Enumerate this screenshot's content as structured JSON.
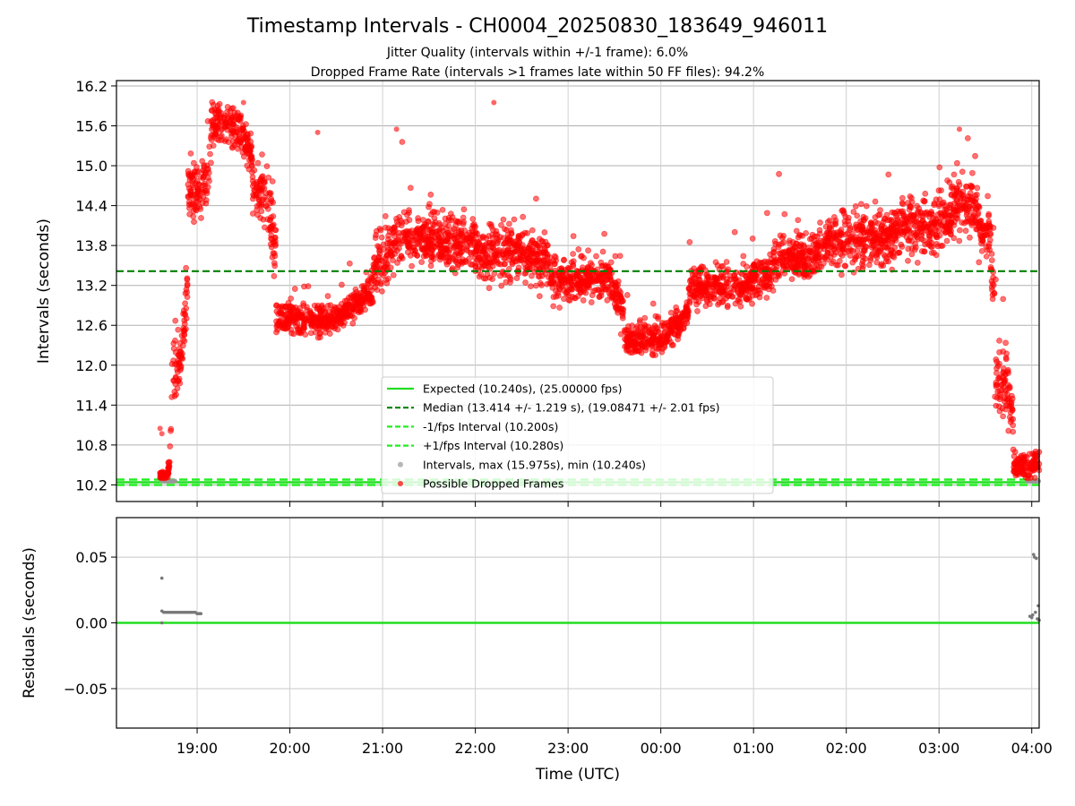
{
  "title": "Timestamp Intervals - CH0004_20250830_183649_946011",
  "subtitle_lines": [
    "Jitter Quality (intervals within +/-1 frame): 6.0%",
    "Dropped Frame Rate (intervals >1 frames late within 50 FF files): 94.2%"
  ],
  "chart_data": [
    {
      "type": "scatter",
      "panel": "top",
      "ylabel": "Intervals (seconds)",
      "xlabel": "",
      "x_unit": "hours after 18:00 UTC",
      "xlim": [
        0.13,
        10.08
      ],
      "ylim": [
        9.95,
        16.28
      ],
      "yticks": [
        10.2,
        10.8,
        11.4,
        12.0,
        12.6,
        13.2,
        13.8,
        14.4,
        15.0,
        15.6,
        16.2
      ],
      "ytick_labels": [
        "10.2",
        "10.8",
        "11.4",
        "12.0",
        "12.6",
        "13.2",
        "13.8",
        "14.4",
        "15.0",
        "15.6",
        "16.2"
      ],
      "grid": true,
      "colors": {
        "expected": "#22dd22",
        "median": "#008000",
        "interval_band": "#22ee22",
        "intervals": "#999999",
        "dropped": "#ff0000"
      },
      "reference_lines": {
        "expected": 10.24,
        "median": 13.414,
        "minus_one_fps": 10.2,
        "plus_one_fps": 10.28
      },
      "legend": {
        "position": "lower-center",
        "entries": [
          "Expected (10.240s), (25.00000 fps)",
          "Median (13.414 +/- 1.219 s), (19.08471 +/- 2.01 fps)",
          "-1/fps Interval (10.200s)",
          "+1/fps Interval (10.280s)",
          "Intervals, max (15.975s), min (10.240s)",
          "Possible Dropped Frames"
        ]
      },
      "trend_segments": [
        {
          "x0": 0.6,
          "x1": 0.72,
          "y": 10.0,
          "spread": 0.15
        },
        {
          "x0": 0.72,
          "x1": 0.9,
          "y": 12.0,
          "spread": 0.45
        },
        {
          "x0": 0.9,
          "x1": 1.15,
          "y": 14.6,
          "spread": 0.45
        },
        {
          "x0": 1.15,
          "x1": 1.6,
          "y": 15.6,
          "spread": 0.3
        },
        {
          "x0": 1.6,
          "x1": 1.85,
          "y": 14.6,
          "spread": 0.45
        },
        {
          "x0": 1.85,
          "x1": 2.9,
          "y": 12.7,
          "spread": 0.22
        },
        {
          "x0": 2.9,
          "x1": 3.1,
          "y": 13.6,
          "spread": 0.45
        },
        {
          "x0": 3.1,
          "x1": 4.0,
          "y": 13.9,
          "spread": 0.4
        },
        {
          "x0": 4.0,
          "x1": 4.8,
          "y": 13.7,
          "spread": 0.4
        },
        {
          "x0": 4.8,
          "x1": 5.15,
          "y": 13.3,
          "spread": 0.35
        },
        {
          "x0": 5.15,
          "x1": 5.6,
          "y": 13.3,
          "spread": 0.3
        },
        {
          "x0": 5.6,
          "x1": 6.3,
          "y": 12.4,
          "spread": 0.22
        },
        {
          "x0": 6.3,
          "x1": 7.2,
          "y": 13.2,
          "spread": 0.3
        },
        {
          "x0": 7.2,
          "x1": 7.8,
          "y": 13.6,
          "spread": 0.35
        },
        {
          "x0": 7.8,
          "x1": 8.6,
          "y": 13.9,
          "spread": 0.4
        },
        {
          "x0": 8.6,
          "x1": 9.15,
          "y": 14.1,
          "spread": 0.45
        },
        {
          "x0": 9.15,
          "x1": 9.45,
          "y": 14.4,
          "spread": 0.45
        },
        {
          "x0": 9.45,
          "x1": 9.6,
          "y": 14.0,
          "spread": 0.4
        },
        {
          "x0": 9.6,
          "x1": 9.8,
          "y": 11.8,
          "spread": 0.5
        },
        {
          "x0": 9.8,
          "x1": 10.08,
          "y": 10.5,
          "spread": 0.18
        }
      ],
      "outlier_points": [
        {
          "x": 1.5,
          "y": 15.95
        },
        {
          "x": 4.2,
          "y": 15.95
        },
        {
          "x": 2.3,
          "y": 15.5
        },
        {
          "x": 3.15,
          "y": 15.55
        },
        {
          "x": 9.22,
          "y": 15.55
        },
        {
          "x": 0.62,
          "y": 10.97
        },
        {
          "x": 0.6,
          "y": 11.05
        }
      ],
      "normal_points_x_ranges": [
        [
          0.62,
          0.77
        ],
        [
          9.95,
          10.08
        ]
      ],
      "normal_points_y": 10.255
    },
    {
      "type": "scatter",
      "panel": "bottom",
      "ylabel": "Residuals (seconds)",
      "xlabel": "Time (UTC)",
      "xlim": [
        0.13,
        10.08
      ],
      "ylim": [
        -0.08,
        0.08
      ],
      "yticks": [
        -0.05,
        0.0,
        0.05
      ],
      "ytick_labels": [
        "−0.05",
        "0.00",
        "0.05"
      ],
      "xticks": [
        1,
        2,
        3,
        4,
        5,
        6,
        7,
        8,
        9,
        10
      ],
      "xtick_labels": [
        "19:00",
        "20:00",
        "21:00",
        "22:00",
        "23:00",
        "00:00",
        "01:00",
        "02:00",
        "03:00",
        "04:00"
      ],
      "grid": true,
      "zero_line": 0.0,
      "residual_points": [
        {
          "x": 0.62,
          "y": 0.034
        },
        {
          "x": 0.62,
          "y": 0.0
        },
        {
          "x": 0.62,
          "y": 0.009
        },
        {
          "x": 0.64,
          "y": 0.008
        },
        {
          "x": 0.66,
          "y": 0.008
        },
        {
          "x": 0.68,
          "y": 0.008
        },
        {
          "x": 0.7,
          "y": 0.008
        },
        {
          "x": 0.72,
          "y": 0.008
        },
        {
          "x": 0.74,
          "y": 0.008
        },
        {
          "x": 0.76,
          "y": 0.008
        },
        {
          "x": 0.78,
          "y": 0.008
        },
        {
          "x": 0.8,
          "y": 0.008
        },
        {
          "x": 0.82,
          "y": 0.008
        },
        {
          "x": 0.84,
          "y": 0.008
        },
        {
          "x": 0.86,
          "y": 0.008
        },
        {
          "x": 0.88,
          "y": 0.008
        },
        {
          "x": 0.9,
          "y": 0.008
        },
        {
          "x": 0.92,
          "y": 0.008
        },
        {
          "x": 0.94,
          "y": 0.008
        },
        {
          "x": 0.96,
          "y": 0.008
        },
        {
          "x": 0.98,
          "y": 0.008
        },
        {
          "x": 1.0,
          "y": 0.007
        },
        {
          "x": 1.02,
          "y": 0.007
        },
        {
          "x": 1.04,
          "y": 0.007
        },
        {
          "x": 9.98,
          "y": 0.005
        },
        {
          "x": 10.0,
          "y": 0.004
        },
        {
          "x": 10.02,
          "y": 0.052
        },
        {
          "x": 10.03,
          "y": 0.05
        },
        {
          "x": 10.05,
          "y": 0.049
        },
        {
          "x": 10.04,
          "y": 0.008
        },
        {
          "x": 10.06,
          "y": 0.003
        },
        {
          "x": 10.07,
          "y": 0.013
        },
        {
          "x": 10.08,
          "y": 0.002
        },
        {
          "x": 10.01,
          "y": 0.006
        }
      ]
    }
  ]
}
